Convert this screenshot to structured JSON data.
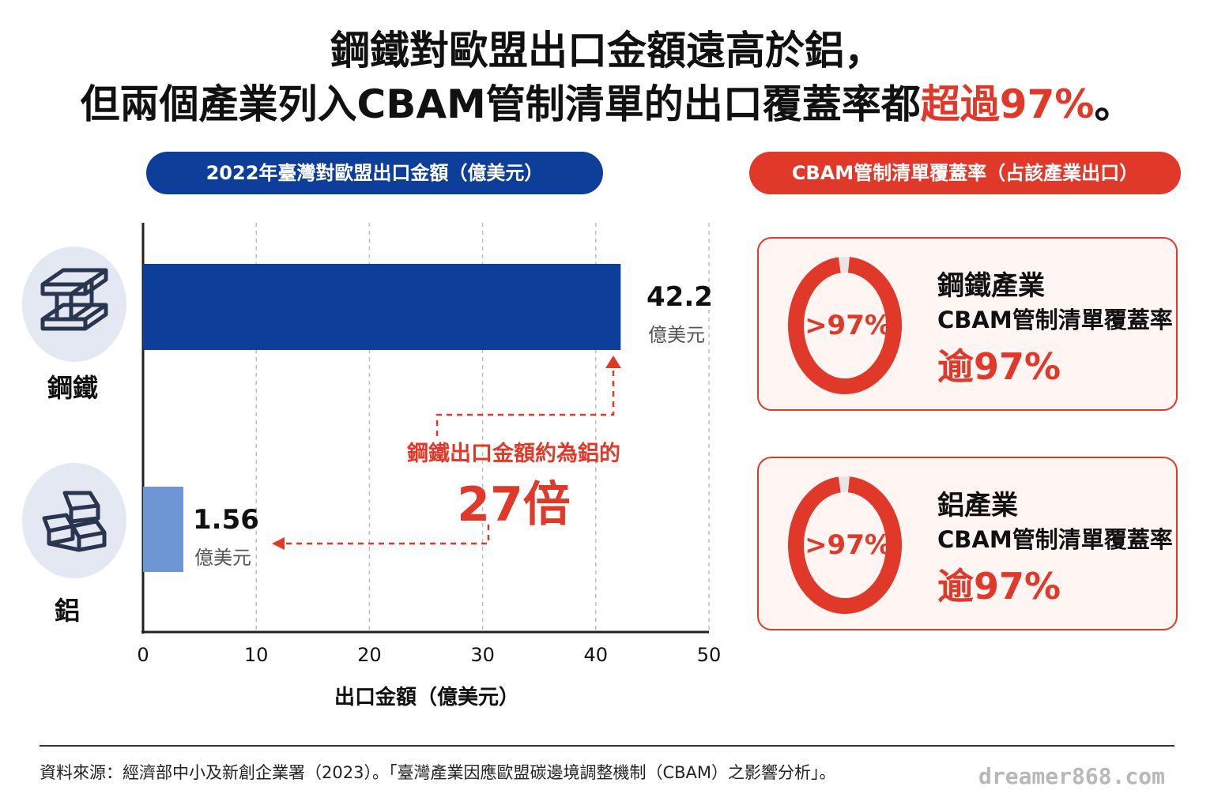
{
  "title": {
    "line1": "鋼鐵對歐盟出口金額遠高於鋁，",
    "line2_prefix": "但兩個產業列入CBAM管制清單的出口覆蓋率都",
    "line2_highlight": "超過97%",
    "line2_suffix": "。"
  },
  "left_header": "2022年臺灣對歐盟出口金額（億美元）",
  "right_header": "CBAM管制清單覆蓋率（占該產業出口）",
  "chart_data": {
    "type": "bar",
    "orientation": "horizontal",
    "categories": [
      "鋼鐵",
      "鋁"
    ],
    "values": [
      42.2,
      1.56
    ],
    "value_labels": [
      "42.2",
      "1.56"
    ],
    "value_unit": "億美元",
    "xlabel": "出口金額（億美元）",
    "xlim": [
      0,
      50
    ],
    "xticks": [
      "0",
      "10",
      "20",
      "30",
      "40",
      "50"
    ],
    "grid": "vertical dashed",
    "bar_colors": [
      "#0d3e9a",
      "#6e95d4"
    ],
    "annotation_line1": "鋼鐵出口金額約為鋁的",
    "annotation_line2": "27倍"
  },
  "cards": [
    {
      "ring_label": ">97%",
      "name": "鋼鐵產業",
      "sub": "CBAM管制清單覆蓋率",
      "big": "逾97%",
      "coverage": 0.97
    },
    {
      "ring_label": ">97%",
      "name": "鋁產業",
      "sub": "CBAM管制清單覆蓋率",
      "big": "逾97%",
      "coverage": 0.97
    }
  ],
  "icons": [
    "i-beam-icon",
    "ingot-stack-icon"
  ],
  "source": "資料來源：經濟部中小及新創企業署（2023）。「臺灣產業因應歐盟碳邊境調整機制（CBAM）之影響分析」。",
  "watermark": "dreamer868.com",
  "colors": {
    "accent_red": "#e0392a",
    "navy": "#0d3e9a",
    "light_blue": "#6e95d4"
  }
}
